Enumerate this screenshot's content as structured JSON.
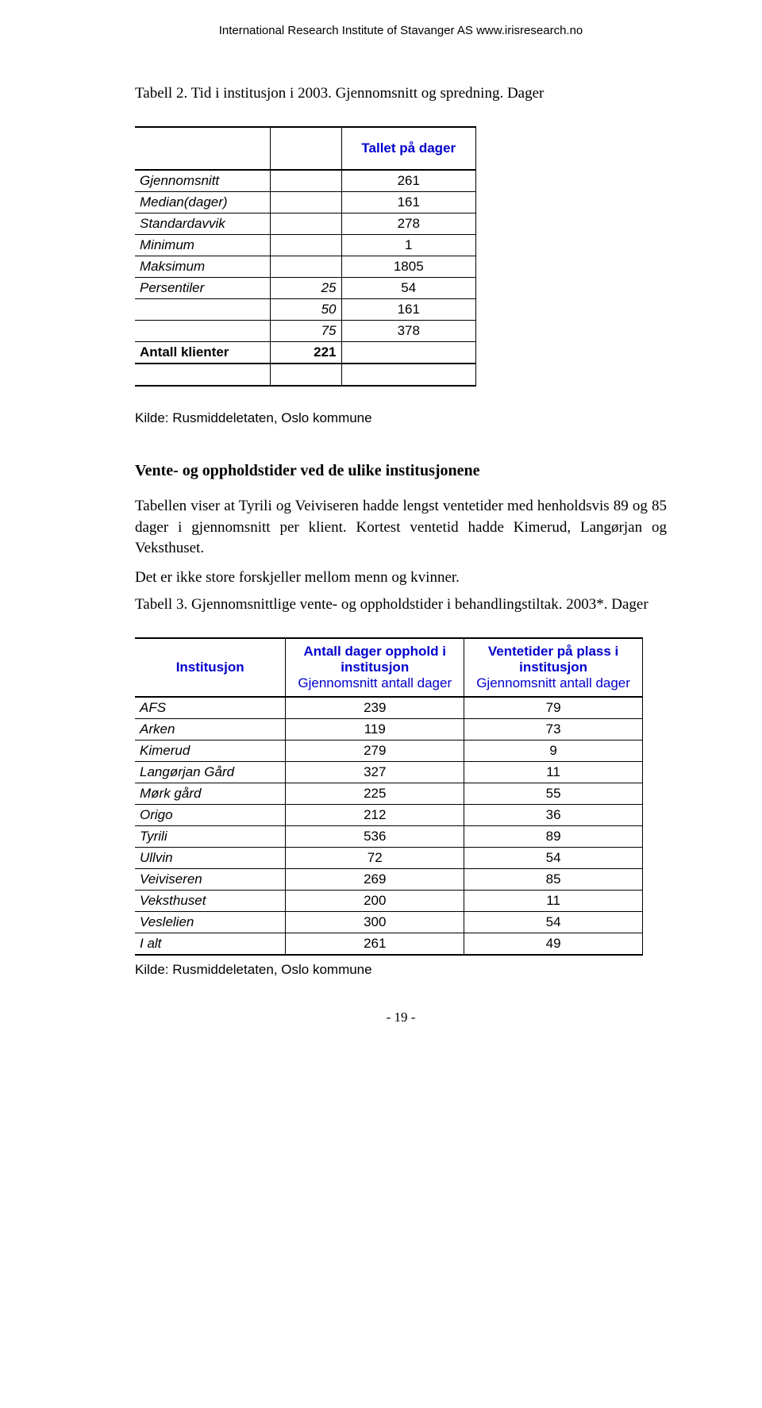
{
  "header": "International Research Institute of Stavanger AS   www.irisresearch.no",
  "caption1": "Tabell 2. Tid i institusjon i 2003. Gjennomsnitt og spredning. Dager",
  "table1": {
    "header": "Tallet på dager",
    "rows": [
      {
        "label": "Gjennomsnitt",
        "mid": "",
        "val": "261"
      },
      {
        "label": "Median(dager)",
        "mid": "",
        "val": "161"
      },
      {
        "label": "Standardavvik",
        "mid": "",
        "val": "278"
      },
      {
        "label": "Minimum",
        "mid": "",
        "val": "1"
      },
      {
        "label": "Maksimum",
        "mid": "",
        "val": "1805"
      },
      {
        "label": "Persentiler",
        "mid": "25",
        "val": "54"
      },
      {
        "label": "",
        "mid": "50",
        "val": "161"
      },
      {
        "label": "",
        "mid": "75",
        "val": "378"
      },
      {
        "label": "Antall klienter",
        "mid": "221",
        "val": "",
        "bold": true
      }
    ]
  },
  "note": "Kilde: Rusmiddeletaten, Oslo kommune",
  "h2": "Vente- og oppholdstider ved de ulike institusjonene",
  "para1": "Tabellen viser at Tyrili og Veiviseren hadde lengst ventetider med henholdsvis 89 og 85 dager i gjennomsnitt per klient. Kortest ventetid hadde Kimerud, Langørjan og Veksthuset.",
  "para2": "Det er ikke store forskjeller mellom menn og kvinner.",
  "caption2": "Tabell 3. Gjennomsnittlige vente- og oppholdstider i behandlingstiltak. 2003*. Dager",
  "table2": {
    "col1_header": "Institusjon",
    "col2_header_line1": "Antall dager opphold i institusjon",
    "col2_header_line2": "Gjennomsnitt antall dager",
    "col3_header_line1": "Ventetider på plass i institusjon",
    "col3_header_line2": "Gjennomsnitt antall dager",
    "rows": [
      {
        "label": "AFS",
        "opphold": "239",
        "vente": "79"
      },
      {
        "label": "Arken",
        "opphold": "119",
        "vente": "73"
      },
      {
        "label": "Kimerud",
        "opphold": "279",
        "vente": "9"
      },
      {
        "label": "Langørjan Gård",
        "opphold": "327",
        "vente": "11"
      },
      {
        "label": "Mørk gård",
        "opphold": "225",
        "vente": "55"
      },
      {
        "label": "Origo",
        "opphold": "212",
        "vente": "36"
      },
      {
        "label": "Tyrili",
        "opphold": "536",
        "vente": "89"
      },
      {
        "label": "Ullvin",
        "opphold": "72",
        "vente": "54"
      },
      {
        "label": "Veiviseren",
        "opphold": "269",
        "vente": "85"
      },
      {
        "label": "Veksthuset",
        "opphold": "200",
        "vente": "11"
      },
      {
        "label": "Veslelien",
        "opphold": "300",
        "vente": "54"
      },
      {
        "label": "I alt",
        "opphold": "261",
        "vente": "49"
      }
    ]
  },
  "note2": "Kilde: Rusmiddeletaten, Oslo kommune",
  "pagenum": "- 19 -"
}
